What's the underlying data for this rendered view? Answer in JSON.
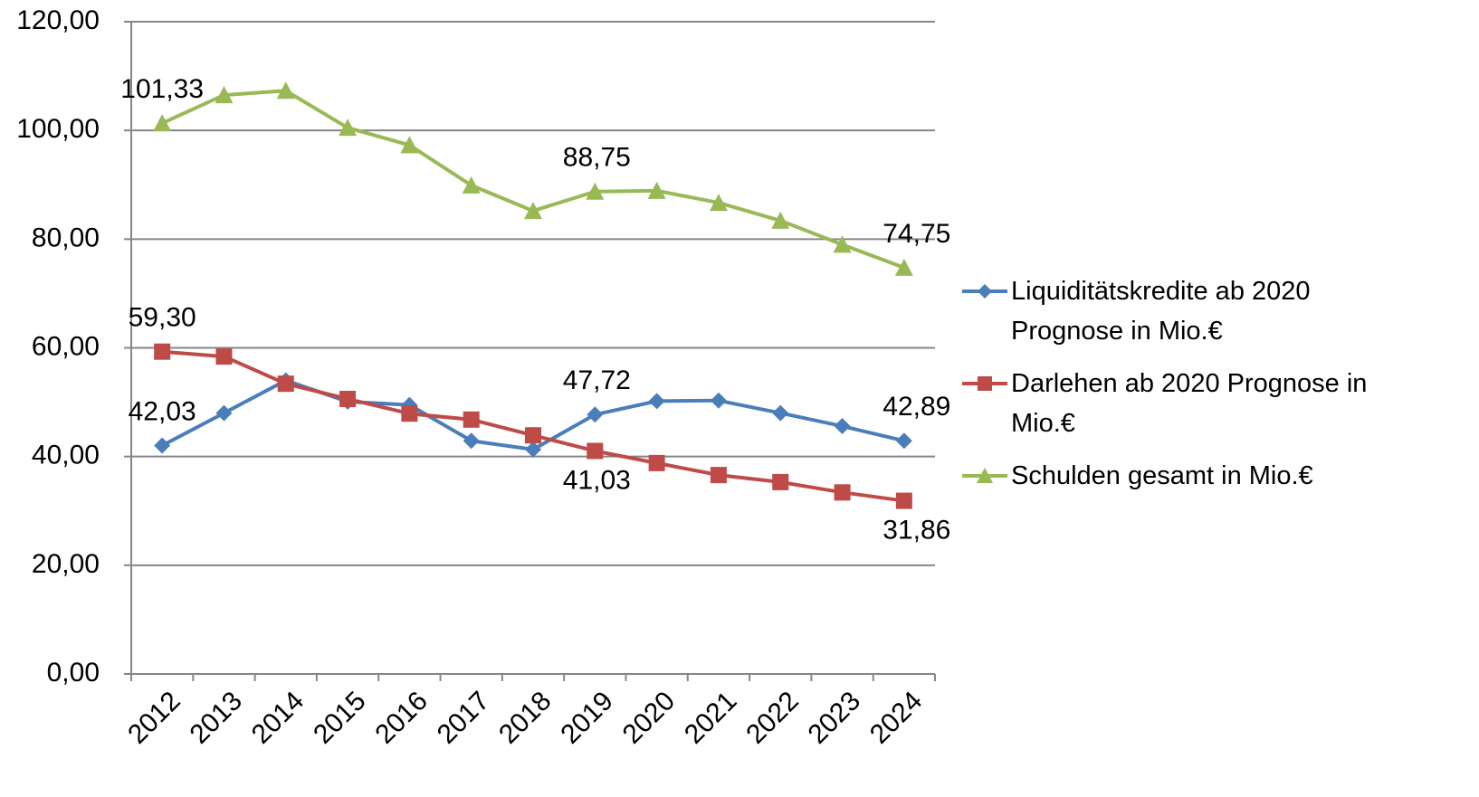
{
  "chart_data": {
    "type": "line",
    "categories": [
      "2012",
      "2013",
      "2014",
      "2015",
      "2016",
      "2017",
      "2018",
      "2019",
      "2020",
      "2021",
      "2022",
      "2023",
      "2024"
    ],
    "series": [
      {
        "name": "Liquiditätskredite ab 2020 Prognose in Mio.€",
        "color": "#4a7ebb",
        "marker": "diamond",
        "values": [
          42.03,
          48.0,
          54.0,
          50.1,
          49.5,
          42.9,
          41.3,
          47.72,
          50.2,
          50.3,
          48.0,
          45.6,
          42.89
        ],
        "value_labels": [
          "42,03",
          null,
          null,
          null,
          null,
          null,
          null,
          "47,72",
          null,
          null,
          null,
          null,
          "42,89"
        ]
      },
      {
        "name": "Darlehen ab 2020 Prognose in Mio.€",
        "color": "#be4b48",
        "marker": "square",
        "values": [
          59.3,
          58.4,
          53.4,
          50.6,
          47.9,
          46.8,
          43.9,
          41.03,
          38.8,
          36.6,
          35.3,
          33.4,
          31.86
        ],
        "value_labels": [
          "59,30",
          null,
          null,
          null,
          null,
          null,
          null,
          "41,03",
          null,
          null,
          null,
          null,
          "31,86"
        ]
      },
      {
        "name": "Schulden gesamt in Mio.€",
        "color": "#98b954",
        "marker": "triangle",
        "values": [
          101.33,
          106.5,
          107.3,
          100.5,
          97.3,
          89.9,
          85.2,
          88.75,
          88.9,
          86.7,
          83.4,
          79.0,
          74.75
        ],
        "value_labels": [
          "101,33",
          null,
          null,
          null,
          null,
          null,
          null,
          "88,75",
          null,
          null,
          null,
          null,
          "74,75"
        ]
      }
    ],
    "ylim": [
      0,
      120
    ],
    "yticks": [
      {
        "value": 0,
        "label": "0,00"
      },
      {
        "value": 20,
        "label": "20,00"
      },
      {
        "value": 40,
        "label": "40,00"
      },
      {
        "value": 60,
        "label": "60,00"
      },
      {
        "value": 80,
        "label": "80,00"
      },
      {
        "value": 100,
        "label": "100,00"
      },
      {
        "value": 120,
        "label": "120,00"
      }
    ],
    "grid": true,
    "legend": "right"
  }
}
